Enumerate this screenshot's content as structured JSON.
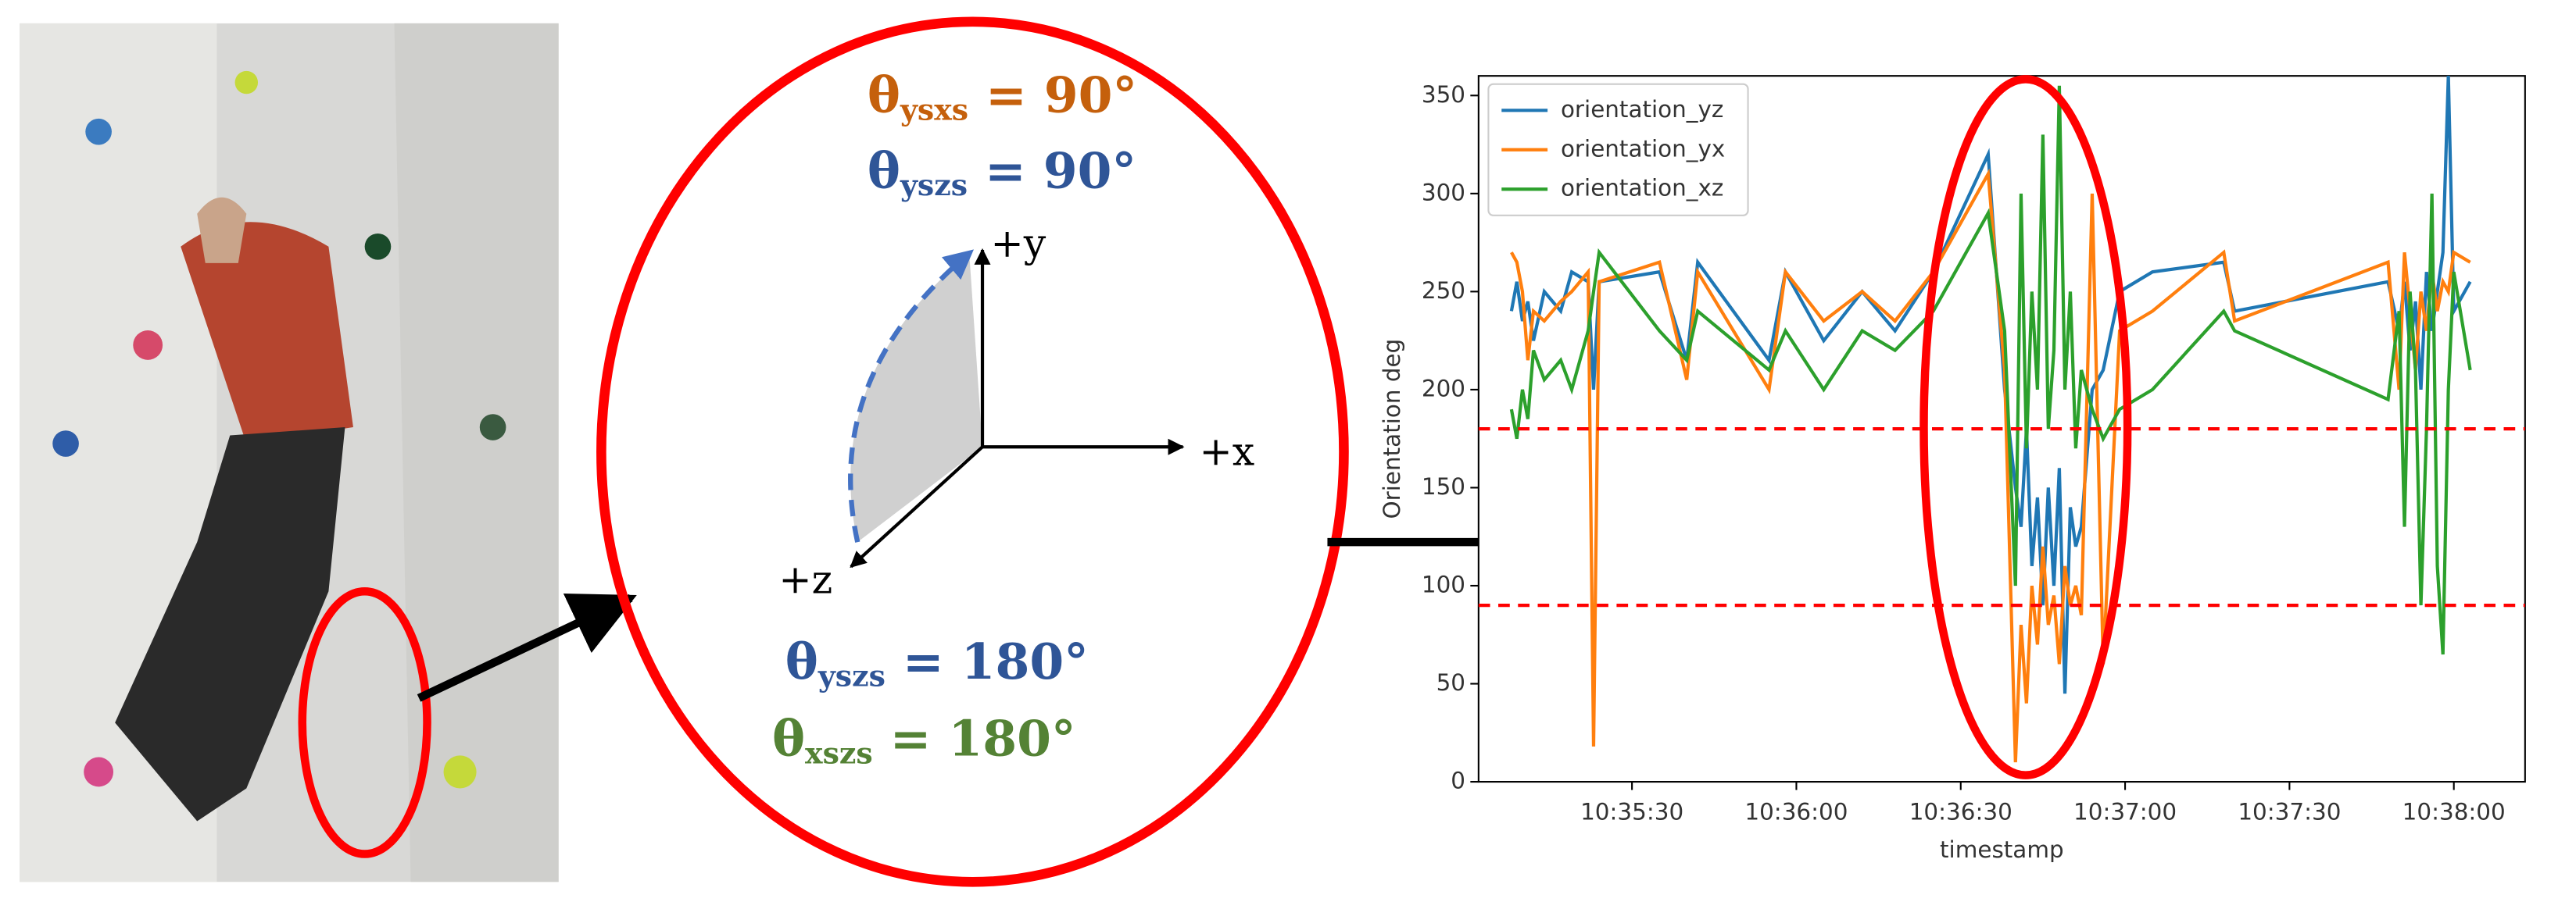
{
  "diagram": {
    "labels": [
      {
        "symbol": "θ",
        "sub": "ysxs",
        "rest": " = 90°"
      },
      {
        "symbol": "θ",
        "sub": "yszs",
        "rest": " = 90°"
      },
      {
        "symbol": "θ",
        "sub": "yszs",
        "rest": " = 180°"
      },
      {
        "symbol": "θ",
        "sub": "xszs",
        "rest": " = 180°"
      }
    ],
    "axes": [
      "+y",
      "+x",
      "+z"
    ]
  },
  "chart_data": {
    "type": "line",
    "xlabel": "timestamp",
    "ylabel": "Orientation deg",
    "legend": "upper left",
    "ylim": [
      0,
      360
    ],
    "yticks": [
      0,
      50,
      100,
      150,
      200,
      250,
      300,
      350
    ],
    "xlim": [
      "10:35:02",
      "10:38:13"
    ],
    "xticks": [
      "10:35:30",
      "10:36:00",
      "10:36:30",
      "10:37:00",
      "10:37:30",
      "10:38:00"
    ],
    "hlines": [
      180,
      90
    ],
    "hline_color": "#ff0000",
    "x": [
      "10:35:08",
      "10:35:09",
      "10:35:10",
      "10:35:11",
      "10:35:12",
      "10:35:14",
      "10:35:17",
      "10:35:19",
      "10:35:22",
      "10:35:23",
      "10:35:24",
      "10:35:35",
      "10:35:40",
      "10:35:42",
      "10:35:55",
      "10:35:58",
      "10:36:05",
      "10:36:12",
      "10:36:18",
      "10:36:25",
      "10:36:35",
      "10:36:38",
      "10:36:40",
      "10:36:41",
      "10:36:42",
      "10:36:43",
      "10:36:44",
      "10:36:45",
      "10:36:46",
      "10:36:47",
      "10:36:48",
      "10:36:49",
      "10:36:50",
      "10:36:51",
      "10:36:52",
      "10:36:54",
      "10:36:56",
      "10:36:59",
      "10:37:05",
      "10:37:18",
      "10:37:20",
      "10:37:48",
      "10:37:50",
      "10:37:51",
      "10:37:52",
      "10:37:53",
      "10:37:54",
      "10:37:55",
      "10:37:56",
      "10:37:57",
      "10:37:58",
      "10:37:59",
      "10:38:00",
      "10:38:03"
    ],
    "series": [
      {
        "name": "orientation_yz",
        "color": "#1f77b4",
        "values": [
          240,
          255,
          235,
          245,
          225,
          250,
          240,
          260,
          255,
          200,
          255,
          260,
          215,
          265,
          215,
          260,
          225,
          250,
          230,
          260,
          320,
          200,
          150,
          130,
          180,
          110,
          145,
          90,
          150,
          100,
          160,
          45,
          140,
          120,
          130,
          200,
          210,
          250,
          260,
          265,
          240,
          255,
          230,
          255,
          220,
          245,
          200,
          260,
          230,
          250,
          270,
          360,
          240,
          255
        ]
      },
      {
        "name": "orientation_yx",
        "color": "#ff7f0e",
        "values": [
          270,
          265,
          250,
          215,
          240,
          235,
          245,
          250,
          260,
          18,
          255,
          265,
          205,
          260,
          200,
          260,
          235,
          250,
          235,
          260,
          310,
          210,
          10,
          80,
          40,
          100,
          70,
          120,
          80,
          95,
          60,
          110,
          90,
          100,
          85,
          300,
          60,
          230,
          240,
          270,
          235,
          265,
          200,
          270,
          240,
          210,
          250,
          230,
          260,
          240,
          255,
          250,
          270,
          265
        ]
      },
      {
        "name": "orientation_xz",
        "color": "#2ca02c",
        "values": [
          190,
          175,
          200,
          185,
          220,
          205,
          215,
          200,
          230,
          250,
          270,
          230,
          215,
          240,
          210,
          230,
          200,
          230,
          220,
          240,
          290,
          230,
          100,
          300,
          170,
          250,
          200,
          330,
          180,
          220,
          355,
          200,
          250,
          170,
          210,
          190,
          175,
          190,
          200,
          240,
          230,
          195,
          240,
          130,
          250,
          210,
          90,
          180,
          300,
          110,
          65,
          200,
          260,
          210
        ]
      }
    ]
  }
}
